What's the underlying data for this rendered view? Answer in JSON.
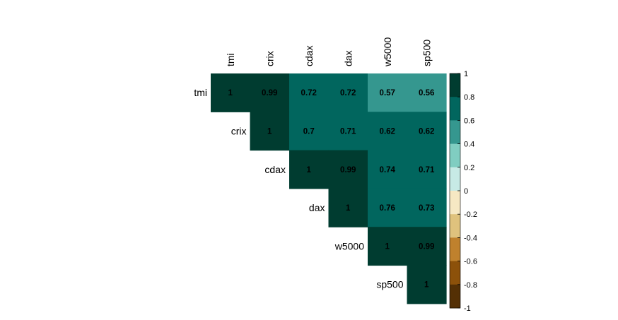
{
  "chart_data": {
    "type": "heatmap",
    "layout": "upper-triangle",
    "variables": [
      "tmi",
      "crix",
      "cdax",
      "dax",
      "w5000",
      "sp500"
    ],
    "matrix": [
      [
        1,
        0.99,
        0.72,
        0.72,
        0.57,
        0.56
      ],
      [
        null,
        1,
        0.7,
        0.71,
        0.62,
        0.62
      ],
      [
        null,
        null,
        1,
        0.99,
        0.74,
        0.71
      ],
      [
        null,
        null,
        null,
        1,
        0.76,
        0.73
      ],
      [
        null,
        null,
        null,
        null,
        1,
        0.99
      ],
      [
        null,
        null,
        null,
        null,
        null,
        1
      ]
    ],
    "value_labels": [
      [
        "1",
        "0.99",
        "0.72",
        "0.72",
        "0.57",
        "0.56"
      ],
      [
        "",
        "1",
        "0.7",
        "0.71",
        "0.62",
        "0.62"
      ],
      [
        "",
        "",
        "1",
        "0.99",
        "0.74",
        "0.71"
      ],
      [
        "",
        "",
        "",
        "1",
        "0.76",
        "0.73"
      ],
      [
        "",
        "",
        "",
        "",
        "1",
        "0.99"
      ],
      [
        "",
        "",
        "",
        "",
        "",
        "1"
      ]
    ],
    "legend": {
      "placement": "right",
      "range": [
        -1,
        1
      ],
      "ticks": [
        "1",
        "0.8",
        "0.6",
        "0.4",
        "0.2",
        "0",
        "-0.2",
        "-0.4",
        "-0.6",
        "-0.8",
        "-1"
      ],
      "colors_top_to_bottom": [
        "#003C30",
        "#01665E",
        "#35978F",
        "#80CDC1",
        "#C7EAE5",
        "#F6E8C3",
        "#DFC27D",
        "#BF812D",
        "#8C510A",
        "#543005"
      ]
    }
  }
}
